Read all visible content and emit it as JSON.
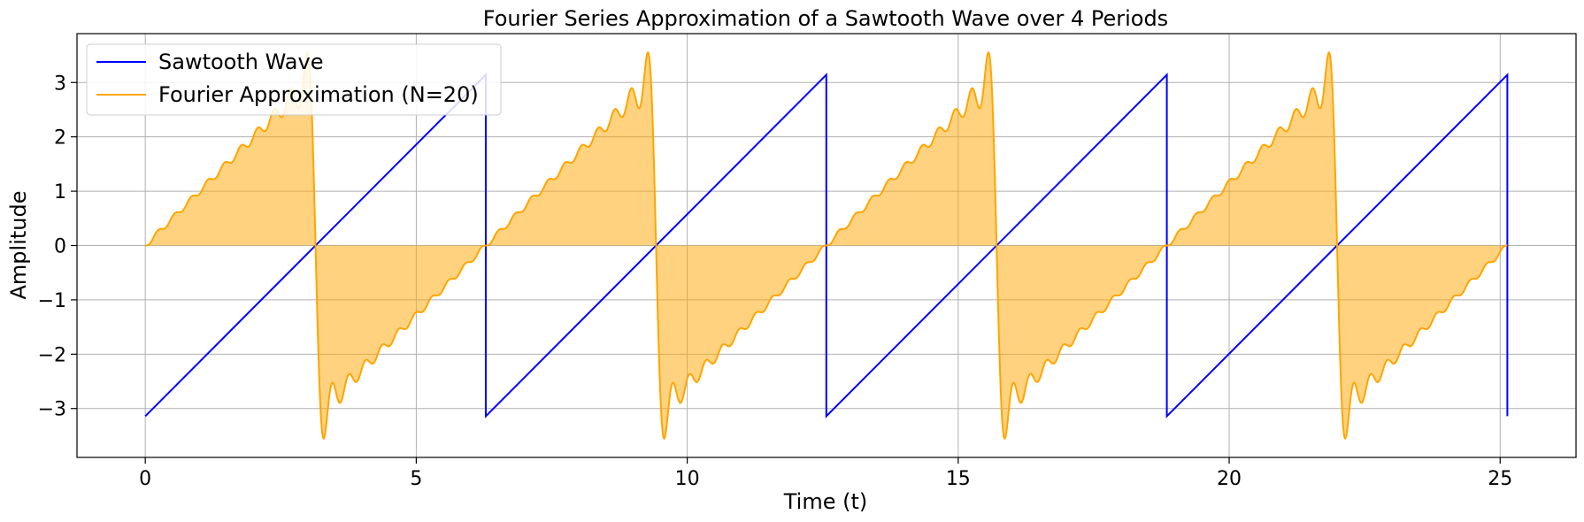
{
  "chart_data": {
    "type": "line",
    "title": "Fourier Series Approximation of a Sawtooth Wave over 4 Periods",
    "xlabel": "Time (t)",
    "ylabel": "Amplitude",
    "xlim": [
      -1.26,
      26.4
    ],
    "ylim": [
      -3.9,
      3.9
    ],
    "xticks": [
      0,
      5,
      10,
      15,
      20,
      25
    ],
    "xtick_labels": [
      "0",
      "5",
      "10",
      "15",
      "20",
      "25"
    ],
    "yticks": [
      -3,
      -2,
      -1,
      0,
      1,
      2,
      3
    ],
    "ytick_labels": [
      "−3",
      "−2",
      "−1",
      "0",
      "1",
      "2",
      "3"
    ],
    "grid": true,
    "legend_position": "upper-left",
    "periods": 4,
    "period": 6.2832,
    "t_range": [
      0,
      25.1327
    ],
    "harmonics": 20,
    "series": [
      {
        "name": "Sawtooth Wave",
        "color": "#0000ff",
        "function": "sawtooth",
        "amplitude_range": [
          -3.1416,
          3.1416
        ]
      },
      {
        "name": "Fourier Approximation (N=20)",
        "color": "#ffa500",
        "function": "fourier_sum",
        "fill_to_zero": true,
        "fill_color": "#ffa500",
        "fill_alpha": 0.5,
        "amplitude_range": [
          -3.55,
          3.55
        ]
      }
    ]
  }
}
